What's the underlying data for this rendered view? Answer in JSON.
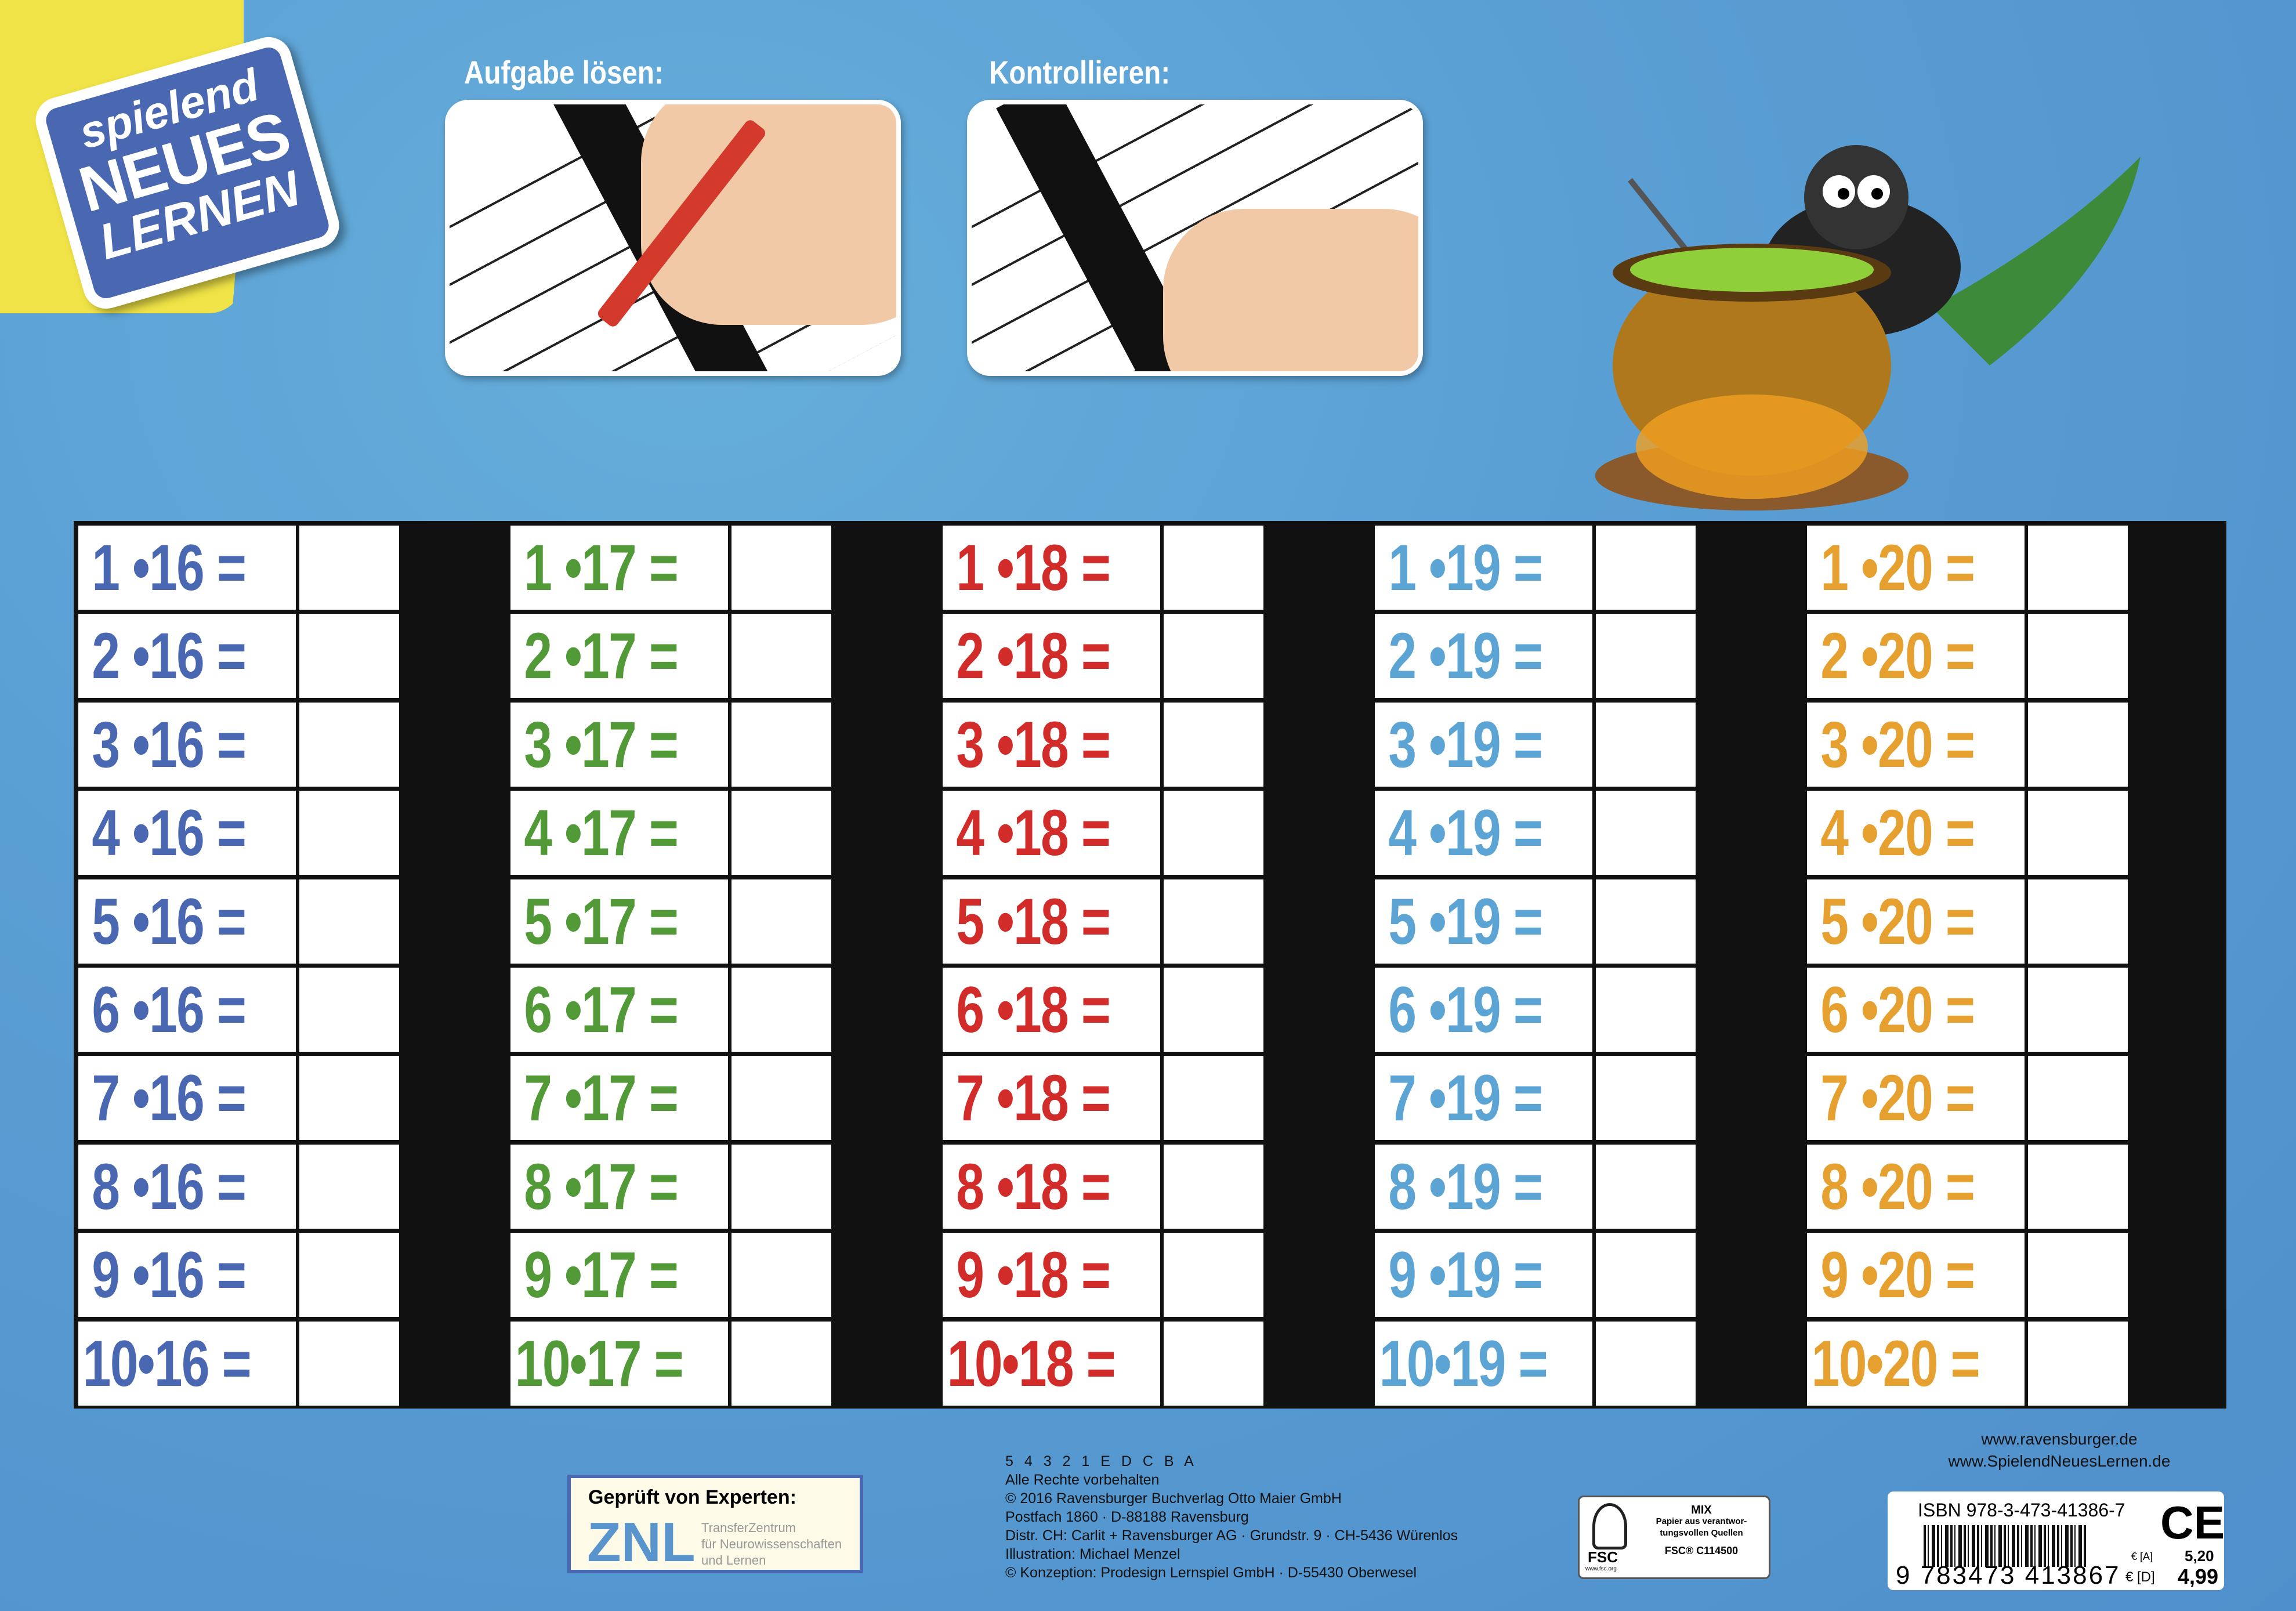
{
  "logo": {
    "line1": "spielend",
    "line2": "NEUES",
    "line3": "LERNEN"
  },
  "instructions": [
    {
      "heading": "Aufgabe lösen:"
    },
    {
      "heading": "Kontrollieren:"
    }
  ],
  "illustration": "witch-cat-with-cauldron",
  "table": {
    "factors": [
      "1",
      "2",
      "3",
      "4",
      "5",
      "6",
      "7",
      "8",
      "9",
      "10"
    ],
    "columns": [
      {
        "multiplier": "16",
        "color": "#4a67b2"
      },
      {
        "multiplier": "17",
        "color": "#529a38"
      },
      {
        "multiplier": "18",
        "color": "#d22c2a"
      },
      {
        "multiplier": "19",
        "color": "#5ba4d4"
      },
      {
        "multiplier": "20",
        "color": "#e5a02f"
      }
    ],
    "operator": "•",
    "equals": "="
  },
  "znl": {
    "title": "Geprüft von Experten:",
    "mark": "ZNL",
    "line1": "TransferZentrum",
    "line2": "für Neurowissenschaften",
    "line3": "und Lernen"
  },
  "imprint": [
    "5 4 3 2 1   E D C B A",
    "Alle Rechte vorbehalten",
    "© 2016 Ravensburger Buchverlag Otto Maier GmbH",
    "Postfach 1860 · D-88188 Ravensburg",
    "Distr. CH: Carlit + Ravensburger AG · Grundstr. 9 · CH-5436 Würenlos",
    "Illustration: Michael Menzel",
    "© Konzeption: Prodesign Lernspiel GmbH · D-55430 Oberwesel"
  ],
  "fsc": {
    "logo": "FSC",
    "site": "www.fsc.org",
    "mix": "MIX",
    "text1": "Papier aus verantwor-",
    "text2": "tungsvollen Quellen",
    "code": "FSC® C114500"
  },
  "links": {
    "site1": "www.ravensburger.de",
    "site2": "www.SpielendNeuesLernen.de"
  },
  "isbn": {
    "label": "ISBN 978-3-473-41386-7",
    "barcode": "9 783473 413867",
    "ce": "CE",
    "price_a_label": "€ [A]",
    "price_a": "5,20",
    "price_d_label": "€ [D]",
    "price_d": "4,99"
  }
}
